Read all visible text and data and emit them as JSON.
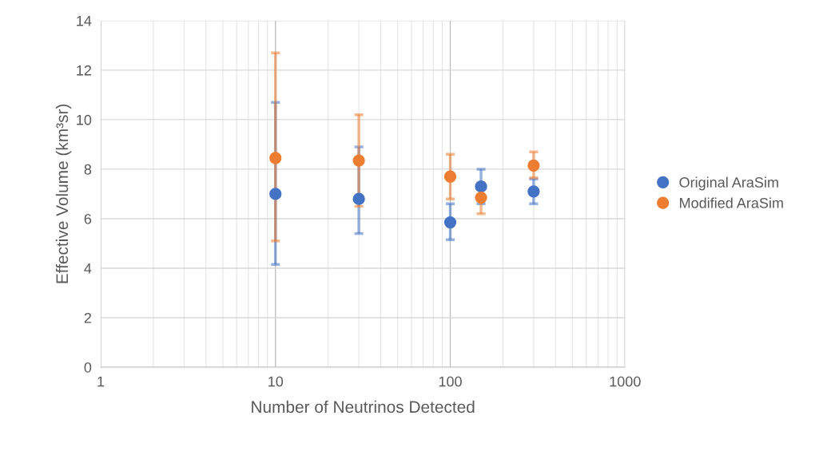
{
  "chart_data": {
    "type": "scatter",
    "xlabel": "Number of Neutrinos Detected",
    "ylabel": "Effective Volume (km³sr)",
    "x": [
      10,
      30,
      100,
      150,
      300
    ],
    "series": [
      {
        "name": "Original AraSim",
        "color": "#4472c4",
        "values": [
          7.0,
          6.8,
          5.85,
          7.3,
          7.1
        ],
        "errors": [
          [
            4.15,
            10.7
          ],
          [
            5.4,
            8.9
          ],
          [
            5.15,
            6.6
          ],
          [
            6.6,
            8.0
          ],
          [
            6.6,
            7.6
          ]
        ]
      },
      {
        "name": "Modified AraSim",
        "color": "#ed7d31",
        "values": [
          8.45,
          8.35,
          7.7,
          6.85,
          8.15
        ],
        "errors": [
          [
            5.1,
            12.7
          ],
          [
            6.5,
            10.2
          ],
          [
            6.8,
            8.6
          ],
          [
            6.2,
            7.45
          ],
          [
            7.65,
            8.7
          ]
        ]
      }
    ],
    "log": "x",
    "xlim": [
      1,
      1000
    ],
    "xticks": [
      1,
      10,
      100,
      1000
    ],
    "ylim": [
      0,
      14
    ],
    "yticks": [
      0,
      2,
      4,
      6,
      8,
      10,
      12,
      14
    ],
    "grid": true,
    "legend": "right",
    "marker": "circle"
  }
}
